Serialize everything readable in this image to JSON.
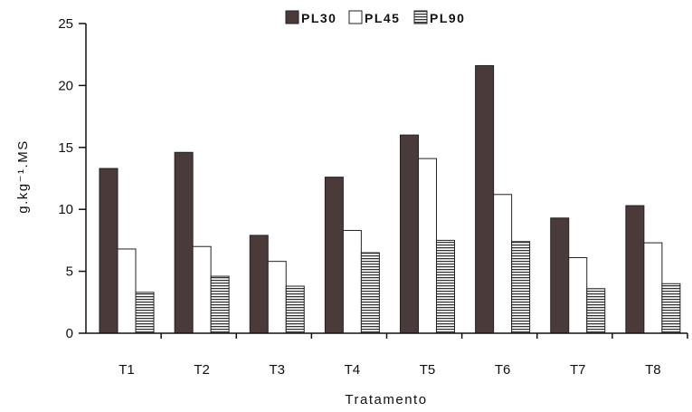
{
  "chart_data": {
    "type": "bar",
    "xlabel": "Tratamento",
    "ylabel": "g.kg⁻¹.MS",
    "ylim": [
      0,
      25
    ],
    "yticks": [
      0,
      5,
      10,
      15,
      20,
      25
    ],
    "categories": [
      "T1",
      "T2",
      "T3",
      "T4",
      "T5",
      "T6",
      "T7",
      "T8"
    ],
    "series": [
      {
        "name": "PL30",
        "values": [
          13.3,
          14.6,
          7.9,
          12.6,
          16.0,
          21.6,
          9.3,
          10.3
        ],
        "fill": "#4a3a3a"
      },
      {
        "name": "PL45",
        "values": [
          6.8,
          7.0,
          5.8,
          8.3,
          14.1,
          11.2,
          6.1,
          7.3
        ],
        "fill": "#ffffff"
      },
      {
        "name": "PL90",
        "values": [
          3.3,
          4.6,
          3.8,
          6.5,
          7.5,
          7.4,
          3.6,
          4.0
        ],
        "fill": "stripes"
      }
    ],
    "legend_position": "top",
    "grid": false
  }
}
